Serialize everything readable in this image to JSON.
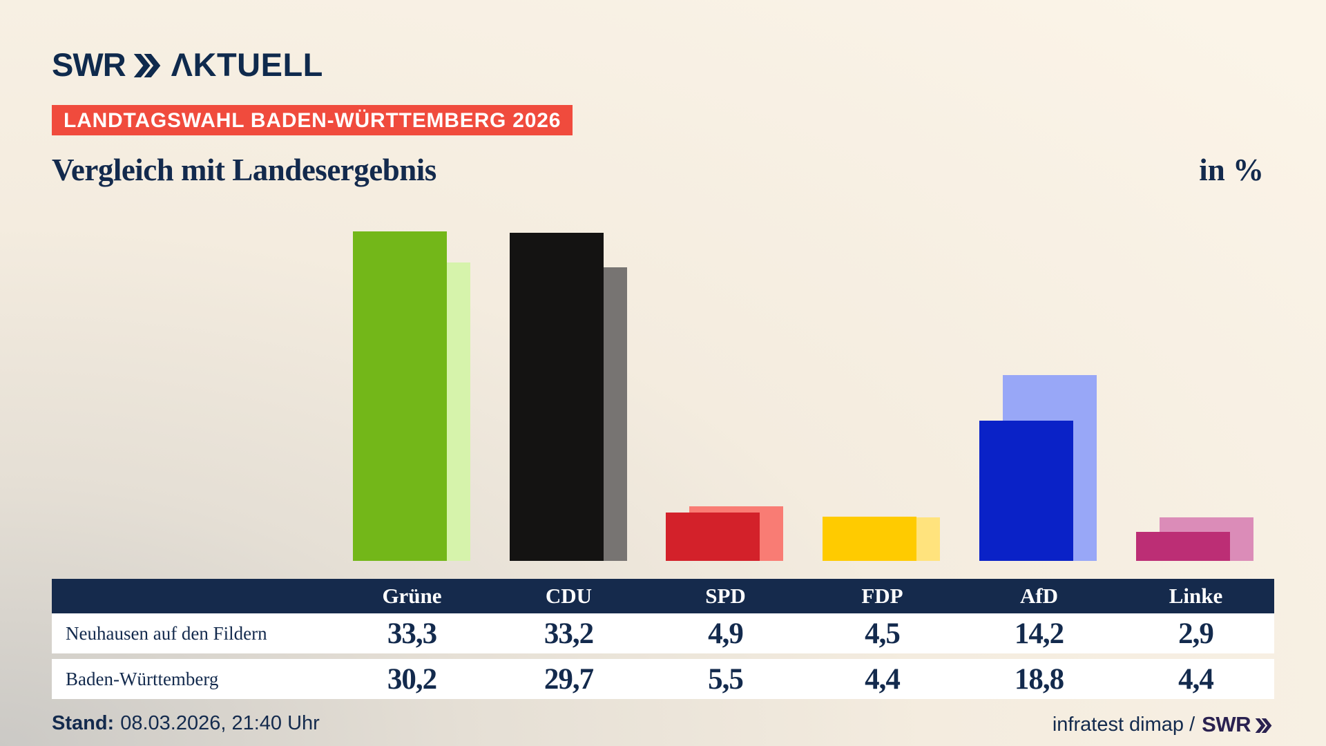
{
  "header": {
    "brand": {
      "swr": "SWR",
      "aktuell": "ΛKTUELL"
    },
    "badge": "LANDTAGSWAHL BADEN-WÜRTTEMBERG 2026",
    "title": "Vergleich mit Landesergebnis",
    "unit_label": "in %"
  },
  "chart_data": {
    "type": "bar",
    "categories": [
      "Grüne",
      "CDU",
      "SPD",
      "FDP",
      "AfD",
      "Linke"
    ],
    "series": [
      {
        "name": "Neuhausen auf den Fildern",
        "values": [
          33.3,
          33.2,
          4.9,
          4.5,
          14.2,
          2.9
        ],
        "colors": [
          "#73b719",
          "#141312",
          "#d3212a",
          "#ffcb00",
          "#0a22c7",
          "#bc2e75"
        ]
      },
      {
        "name": "Baden-Württemberg",
        "values": [
          30.2,
          29.7,
          5.5,
          4.4,
          18.8,
          4.4
        ],
        "colors": [
          "#d6f3ab",
          "#777472",
          "#f97c74",
          "#ffe37d",
          "#98a7f7",
          "#db8cb8"
        ]
      }
    ],
    "title": "Vergleich mit Landesergebnis",
    "xlabel": "",
    "ylabel": "in %",
    "ylim": [
      0,
      35
    ],
    "grid": false,
    "legend": "table-below",
    "value_format": "decimal-comma"
  },
  "table": {
    "columns": [
      "Grüne",
      "CDU",
      "SPD",
      "FDP",
      "AfD",
      "Linke"
    ],
    "rows": [
      {
        "label": "Neuhausen auf den Fildern",
        "values": [
          "33,3",
          "33,2",
          "4,9",
          "4,5",
          "14,2",
          "2,9"
        ]
      },
      {
        "label": "Baden-Württemberg",
        "values": [
          "30,2",
          "29,7",
          "5,5",
          "4,4",
          "18,8",
          "4,4"
        ]
      }
    ]
  },
  "footer": {
    "stand_label": "Stand:",
    "stand_value": "08.03.2026, 21:40 Uhr",
    "source": "infratest dimap /",
    "source_brand": "SWR"
  },
  "colors": {
    "navy": "#152a4c",
    "badge_red": "#f04b3d",
    "background_cream": "#f7efe3",
    "background_gray": "#cbc9c5",
    "footer_brand_purple": "#2a2150",
    "row_white": "#ffffff"
  }
}
